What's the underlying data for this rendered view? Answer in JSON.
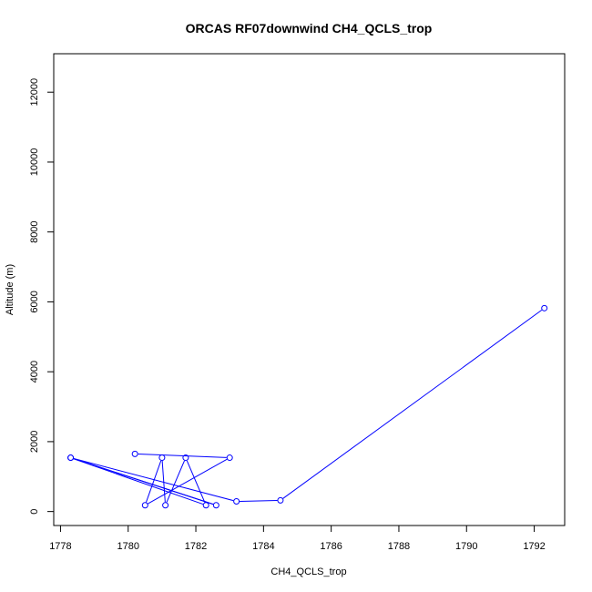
{
  "chart_data": {
    "type": "line",
    "title": "ORCAS RF07downwind CH4_QCLS_trop",
    "xlabel": "CH4_QCLS_trop",
    "ylabel": "Altitude (m)",
    "xlim": [
      1777.8,
      1792.9
    ],
    "ylim": [
      -400,
      13100
    ],
    "xticks": [
      1778,
      1780,
      1782,
      1784,
      1786,
      1788,
      1790,
      1792
    ],
    "yticks": [
      0,
      2000,
      4000,
      6000,
      8000,
      10000,
      12000
    ],
    "grid": false,
    "legend": "none",
    "markers": "open-circle",
    "series": [
      {
        "points": [
          {
            "x": 1780.2,
            "y": 1650
          },
          {
            "x": 1783.0,
            "y": 1540
          },
          {
            "x": 1780.5,
            "y": 180
          },
          {
            "x": 1781.0,
            "y": 1540
          },
          {
            "x": 1781.1,
            "y": 180
          },
          {
            "x": 1781.7,
            "y": 1540
          },
          {
            "x": 1782.3,
            "y": 180
          },
          {
            "x": 1778.3,
            "y": 1540
          },
          {
            "x": 1782.6,
            "y": 180
          },
          {
            "x": 1778.3,
            "y": 1540
          },
          {
            "x": 1783.2,
            "y": 290
          },
          {
            "x": 1784.5,
            "y": 320
          },
          {
            "x": 1792.3,
            "y": 5820
          }
        ]
      }
    ]
  },
  "colors": {
    "series": "#0000ff",
    "axis": "#000000",
    "background": "#ffffff"
  }
}
